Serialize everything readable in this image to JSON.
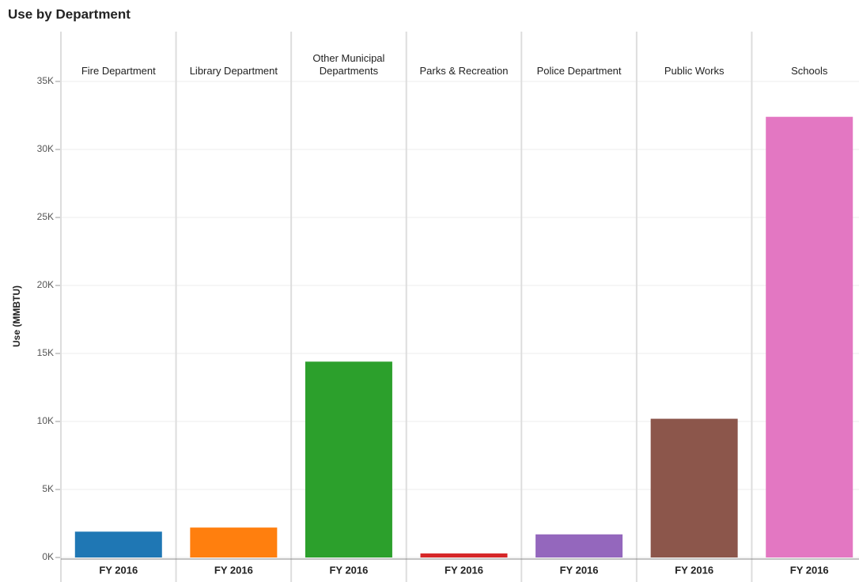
{
  "chart_data": {
    "type": "bar",
    "title": "Use by Department",
    "ylabel": "Use (MMBTU)",
    "categories": [
      "Fire Department",
      "Library Department",
      "Other Municipal Departments",
      "Parks & Recreation",
      "Police Department",
      "Public Works",
      "Schools"
    ],
    "subcategories": [
      "FY 2016",
      "FY 2016",
      "FY 2016",
      "FY 2016",
      "FY 2016",
      "FY 2016",
      "FY 2016"
    ],
    "values": [
      1900,
      2200,
      14400,
      300,
      1700,
      10200,
      32400
    ],
    "colors": [
      "#1f77b4",
      "#ff7f0e",
      "#2ca02c",
      "#d62728",
      "#9467bd",
      "#8c564b",
      "#e377c2"
    ],
    "ylim": [
      0,
      35000
    ],
    "yticks": [
      {
        "value": 0,
        "label": "0K"
      },
      {
        "value": 5000,
        "label": "5K"
      },
      {
        "value": 10000,
        "label": "10K"
      },
      {
        "value": 15000,
        "label": "15K"
      },
      {
        "value": 20000,
        "label": "20K"
      },
      {
        "value": 25000,
        "label": "25K"
      },
      {
        "value": 30000,
        "label": "30K"
      },
      {
        "value": 35000,
        "label": "35K"
      }
    ],
    "grid": true
  }
}
